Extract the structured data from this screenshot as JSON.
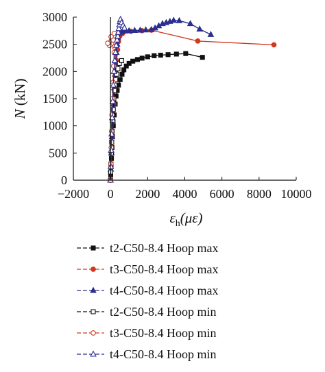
{
  "chart_data": {
    "type": "line",
    "title": "",
    "ylabel_parts": {
      "var": "N",
      "unit": " (kN)"
    },
    "xlabel_parts": {
      "base": "ε",
      "sub": "h",
      "unit": "(με)"
    },
    "xlim": [
      -2000,
      10000
    ],
    "ylim": [
      0,
      3000
    ],
    "x_ticks": [
      -2000,
      0,
      2000,
      4000,
      6000,
      8000,
      10000
    ],
    "x_tick_labels": [
      "−2000",
      "0",
      "2000",
      "4000",
      "6000",
      "8000",
      "10000"
    ],
    "y_ticks": [
      0,
      500,
      1000,
      1500,
      2000,
      2500,
      3000
    ],
    "y_tick_labels": [
      "0",
      "500",
      "1000",
      "1500",
      "2000",
      "2500",
      "3000"
    ],
    "grid": false,
    "legend_placement": "below",
    "series": [
      {
        "name": "t2-C50-8.4 Hoop max",
        "color": "#111111",
        "marker": "square",
        "filled": true,
        "points": [
          [
            0,
            0
          ],
          [
            10,
            100
          ],
          [
            30,
            250
          ],
          [
            50,
            400
          ],
          [
            80,
            600
          ],
          [
            110,
            800
          ],
          [
            150,
            1000
          ],
          [
            200,
            1200
          ],
          [
            250,
            1400
          ],
          [
            300,
            1550
          ],
          [
            360,
            1650
          ],
          [
            430,
            1750
          ],
          [
            520,
            1850
          ],
          [
            620,
            1950
          ],
          [
            720,
            2030
          ],
          [
            850,
            2100
          ],
          [
            1000,
            2150
          ],
          [
            1200,
            2190
          ],
          [
            1450,
            2220
          ],
          [
            1700,
            2245
          ],
          [
            2000,
            2270
          ],
          [
            2350,
            2290
          ],
          [
            2700,
            2300
          ],
          [
            3100,
            2310
          ],
          [
            3550,
            2320
          ],
          [
            4050,
            2330
          ],
          [
            4950,
            2260
          ]
        ]
      },
      {
        "name": "t3-C50-8.4 Hoop max",
        "color": "#d2391f",
        "marker": "circle",
        "filled": true,
        "points": [
          [
            0,
            0
          ],
          [
            30,
            250
          ],
          [
            60,
            500
          ],
          [
            100,
            800
          ],
          [
            140,
            1100
          ],
          [
            180,
            1400
          ],
          [
            230,
            1700
          ],
          [
            280,
            2000
          ],
          [
            330,
            2200
          ],
          [
            380,
            2400
          ],
          [
            430,
            2550
          ],
          [
            500,
            2650
          ],
          [
            650,
            2700
          ],
          [
            1100,
            2740
          ],
          [
            1700,
            2750
          ],
          [
            2200,
            2760
          ],
          [
            4700,
            2560
          ],
          [
            8800,
            2490
          ]
        ]
      },
      {
        "name": "t4-C50-8.4 Hoop max",
        "color": "#2b2e8f",
        "marker": "triangle",
        "filled": true,
        "points": [
          [
            0,
            0
          ],
          [
            20,
            200
          ],
          [
            50,
            500
          ],
          [
            80,
            800
          ],
          [
            120,
            1100
          ],
          [
            160,
            1400
          ],
          [
            200,
            1700
          ],
          [
            250,
            1950
          ],
          [
            290,
            2150
          ],
          [
            320,
            2350
          ],
          [
            360,
            2500
          ],
          [
            400,
            2620
          ],
          [
            450,
            2700
          ],
          [
            500,
            2720
          ],
          [
            560,
            2730
          ],
          [
            650,
            2740
          ],
          [
            800,
            2745
          ],
          [
            1000,
            2750
          ],
          [
            1300,
            2755
          ],
          [
            1600,
            2760
          ],
          [
            1900,
            2765
          ],
          [
            2200,
            2770
          ],
          [
            2400,
            2800
          ],
          [
            2600,
            2840
          ],
          [
            2800,
            2880
          ],
          [
            3000,
            2900
          ],
          [
            3200,
            2920
          ],
          [
            3400,
            2940
          ],
          [
            3700,
            2935
          ],
          [
            4300,
            2880
          ],
          [
            4800,
            2780
          ],
          [
            5400,
            2680
          ]
        ]
      },
      {
        "name": "t2-C50-8.4 Hoop min",
        "color": "#111111",
        "marker": "square",
        "filled": false,
        "points": [
          [
            0,
            0
          ],
          [
            10,
            150
          ],
          [
            25,
            300
          ],
          [
            45,
            500
          ],
          [
            65,
            700
          ],
          [
            90,
            900
          ],
          [
            120,
            1100
          ],
          [
            150,
            1300
          ],
          [
            180,
            1500
          ],
          [
            210,
            1650
          ],
          [
            240,
            1750
          ],
          [
            280,
            1850
          ],
          [
            330,
            1950
          ],
          [
            400,
            2050
          ],
          [
            480,
            2150
          ],
          [
            600,
            2200
          ]
        ]
      },
      {
        "name": "t3-C50-8.4 Hoop min",
        "color": "#d2391f",
        "marker": "circle",
        "filled": false,
        "points": [
          [
            0,
            0
          ],
          [
            20,
            300
          ],
          [
            40,
            600
          ],
          [
            60,
            900
          ],
          [
            80,
            1200
          ],
          [
            110,
            1500
          ],
          [
            140,
            1800
          ],
          [
            170,
            2100
          ],
          [
            200,
            2350
          ],
          [
            210,
            2450
          ],
          [
            150,
            2580
          ],
          [
            -50,
            2480
          ],
          [
            -150,
            2520
          ],
          [
            30,
            2640
          ],
          [
            200,
            2700
          ]
        ]
      },
      {
        "name": "t4-C50-8.4 Hoop min",
        "color": "#2b2e8f",
        "marker": "triangle",
        "filled": false,
        "points": [
          [
            0,
            0
          ],
          [
            15,
            250
          ],
          [
            35,
            550
          ],
          [
            60,
            850
          ],
          [
            90,
            1150
          ],
          [
            120,
            1450
          ],
          [
            150,
            1750
          ],
          [
            190,
            2000
          ],
          [
            230,
            2200
          ],
          [
            270,
            2350
          ],
          [
            310,
            2480
          ],
          [
            350,
            2580
          ],
          [
            390,
            2650
          ],
          [
            420,
            2720
          ],
          [
            450,
            2790
          ],
          [
            480,
            2860
          ],
          [
            510,
            2920
          ],
          [
            540,
            2960
          ],
          [
            600,
            2900
          ],
          [
            680,
            2850
          ],
          [
            750,
            2800
          ]
        ]
      }
    ]
  }
}
